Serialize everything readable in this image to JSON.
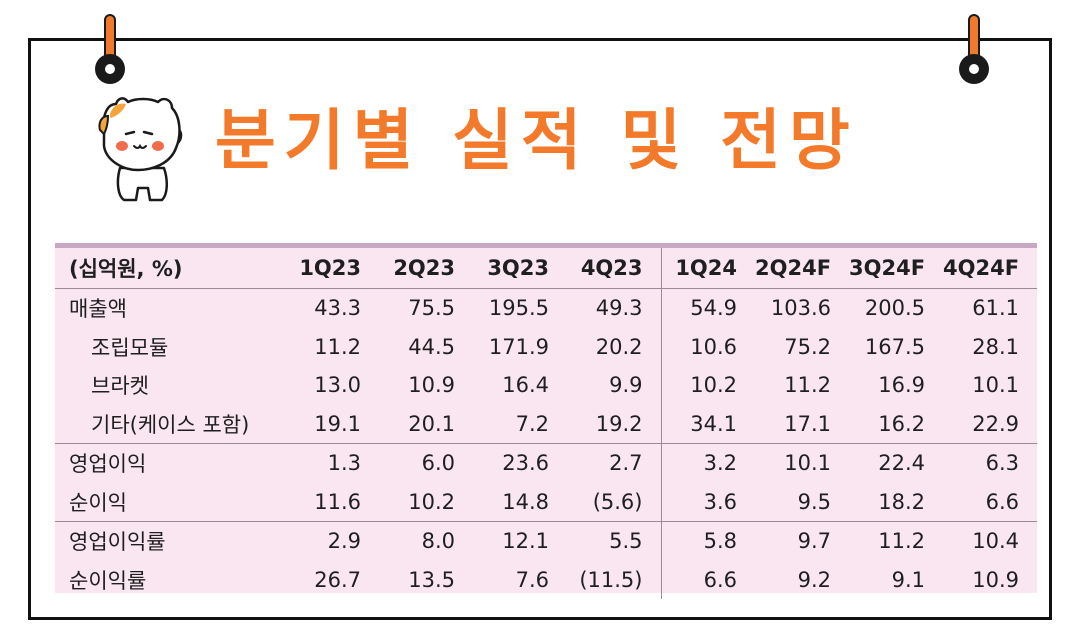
{
  "title": "분기별 실적 및 전망",
  "table": {
    "headers": [
      "(십억원, %)",
      "1Q23",
      "2Q23",
      "3Q23",
      "4Q23",
      "1Q24",
      "2Q24F",
      "3Q24F",
      "4Q24F"
    ],
    "rows": [
      {
        "label": "매출액",
        "values": [
          "43.3",
          "75.5",
          "195.5",
          "49.3",
          "54.9",
          "103.6",
          "200.5",
          "61.1"
        ]
      },
      {
        "label": "조립모듈",
        "values": [
          "11.2",
          "44.5",
          "171.9",
          "20.2",
          "10.6",
          "75.2",
          "167.5",
          "28.1"
        ]
      },
      {
        "label": "브라켓",
        "values": [
          "13.0",
          "10.9",
          "16.4",
          "9.9",
          "10.2",
          "11.2",
          "16.9",
          "10.1"
        ]
      },
      {
        "label": "기타(케이스 포함)",
        "values": [
          "19.1",
          "20.1",
          "7.2",
          "19.2",
          "34.1",
          "17.1",
          "16.2",
          "22.9"
        ]
      },
      {
        "label": "영업이익",
        "values": [
          "1.3",
          "6.0",
          "23.6",
          "2.7",
          "3.2",
          "10.1",
          "22.4",
          "6.3"
        ]
      },
      {
        "label": "순이익",
        "values": [
          "11.6",
          "10.2",
          "14.8",
          "(5.6)",
          "3.6",
          "9.5",
          "18.2",
          "6.6"
        ]
      },
      {
        "label": "영업이익률",
        "values": [
          "2.9",
          "8.0",
          "12.1",
          "5.5",
          "5.8",
          "9.7",
          "11.2",
          "10.4"
        ]
      },
      {
        "label": "순이익률",
        "values": [
          "26.7",
          "13.5",
          "7.6",
          "(11.5)",
          "6.6",
          "9.2",
          "9.1",
          "10.9"
        ]
      }
    ]
  },
  "colors": {
    "accent": "#f27a2a",
    "table_bg": "#f9e6f1",
    "border": "#111111"
  }
}
